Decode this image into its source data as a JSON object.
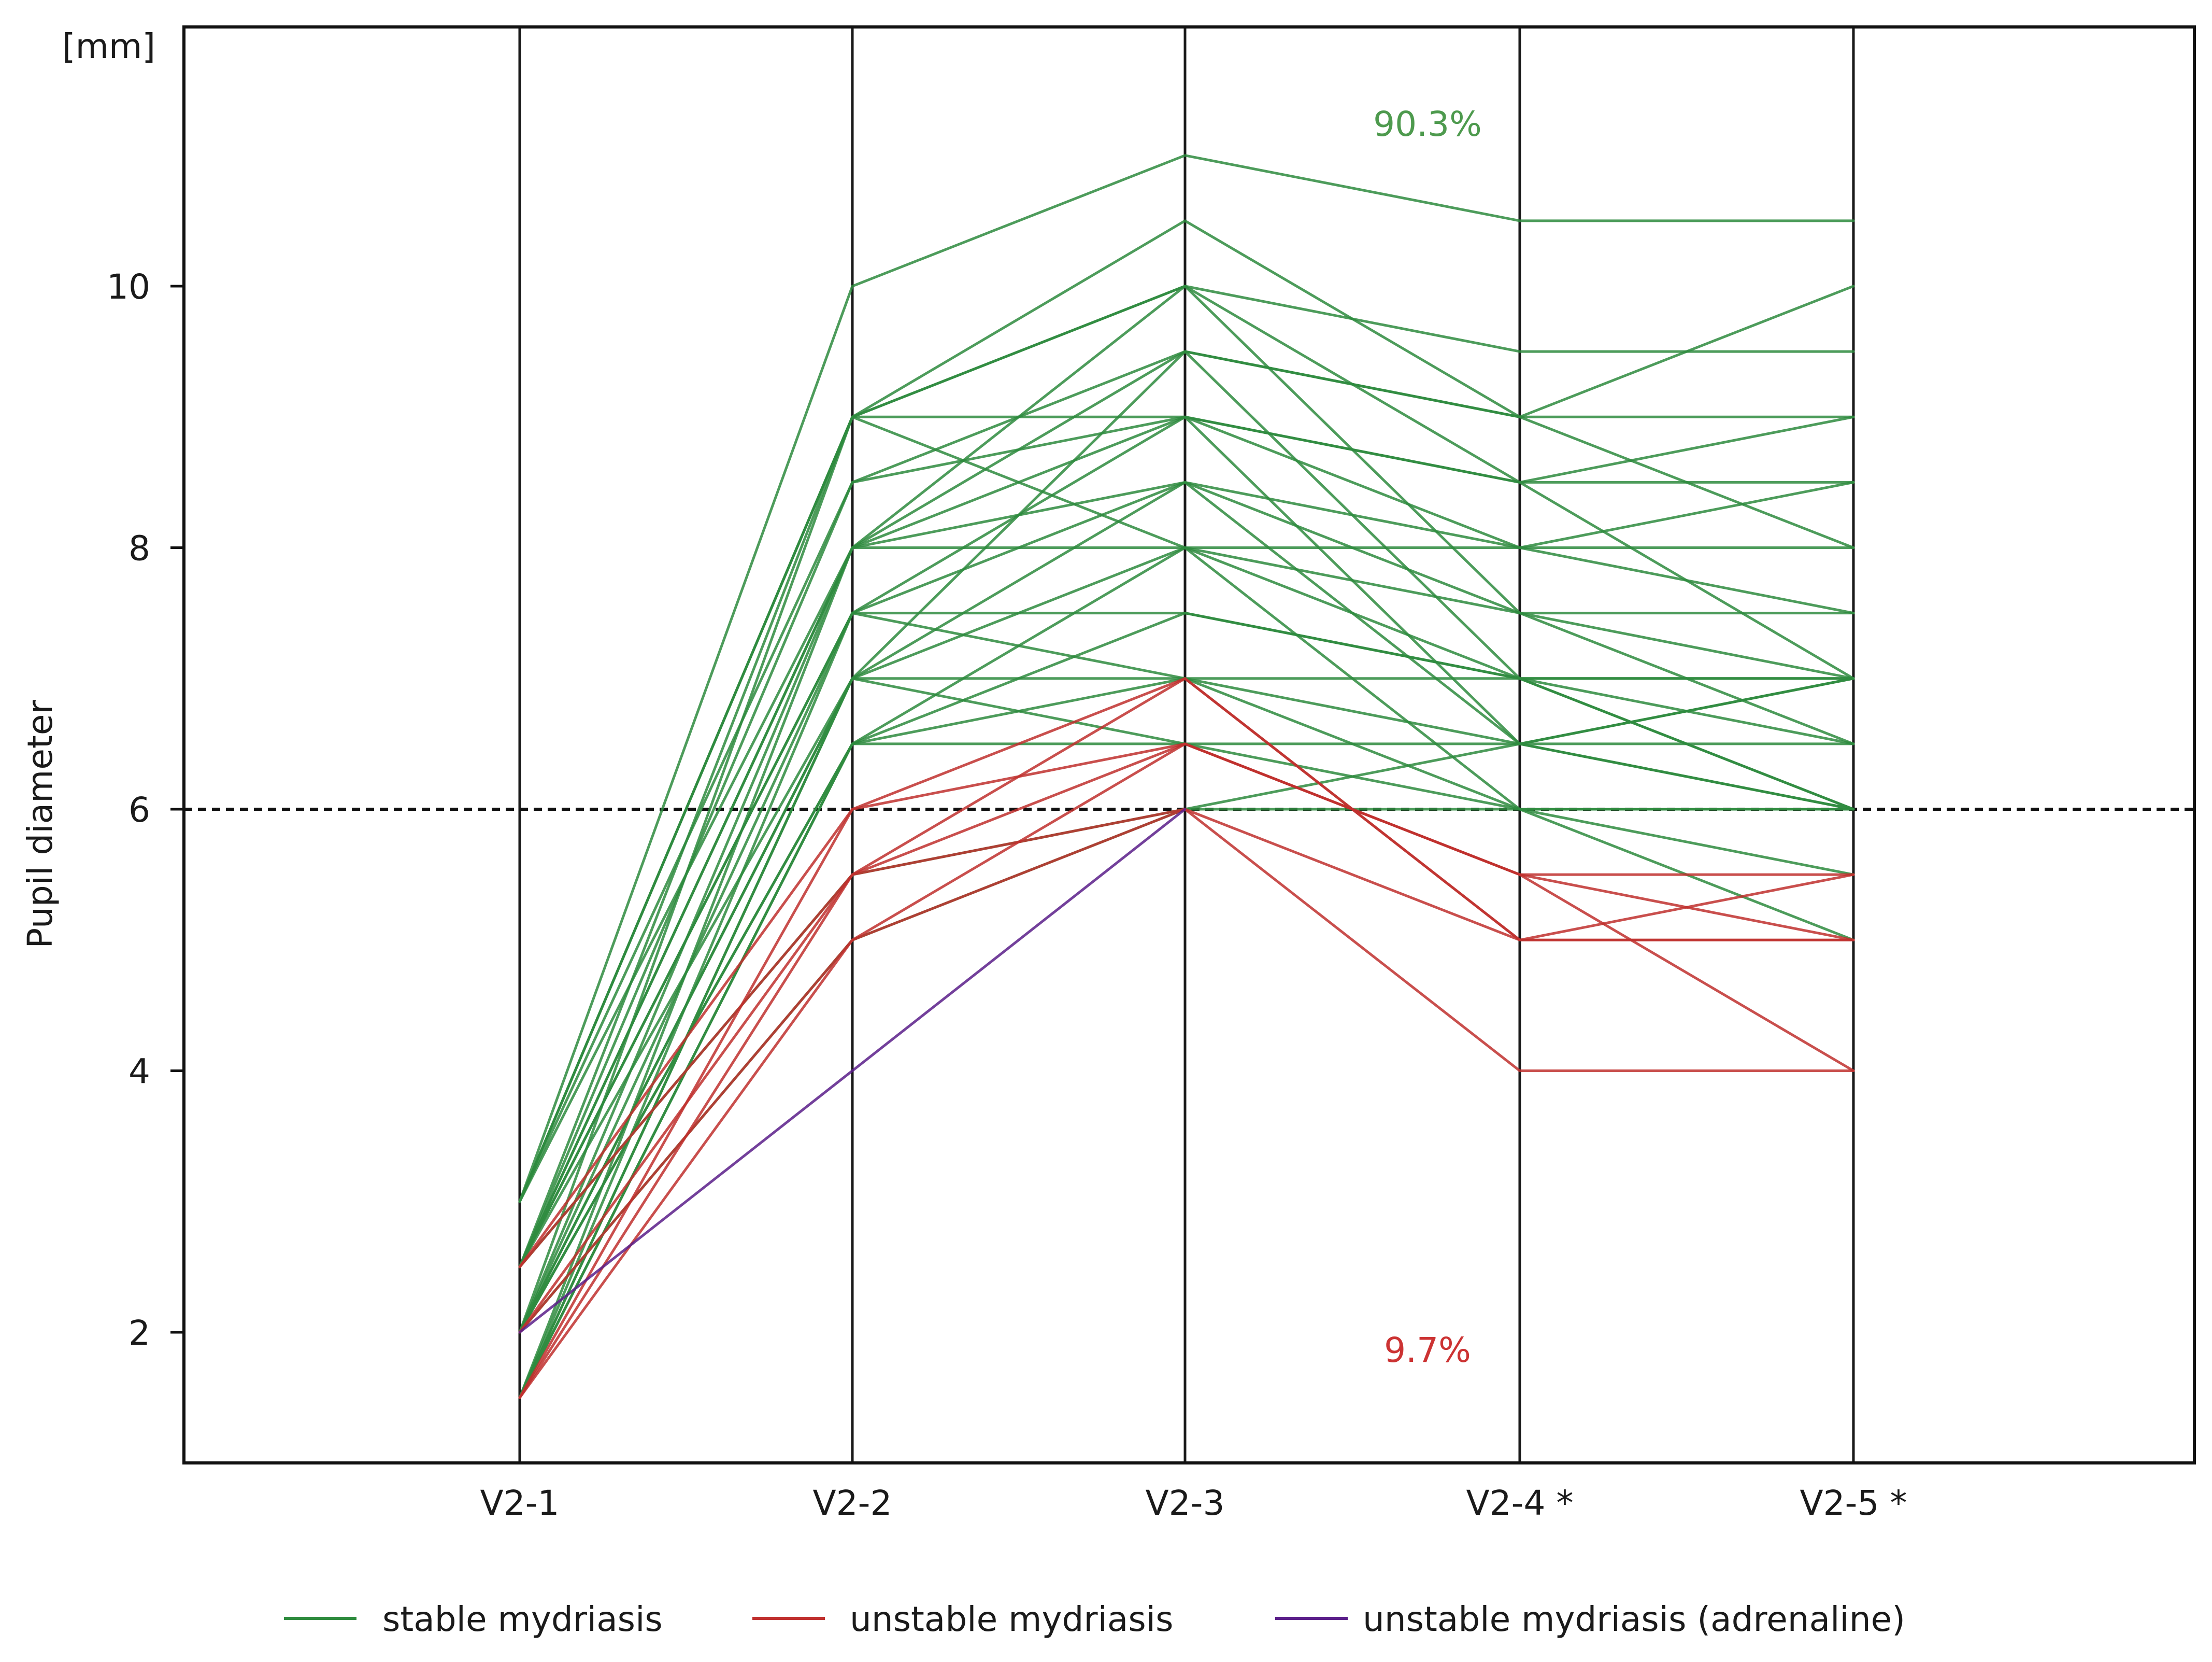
{
  "chart_data": {
    "type": "line",
    "chart_style": "parallel coordinates",
    "ylabel": "Pupil diameter",
    "unit_label": "[mm]",
    "categories": [
      "V2-1",
      "V2-2",
      "V2-3",
      "V2-4 *",
      "V2-5 *"
    ],
    "ylim": [
      1,
      12
    ],
    "yticks": [
      2,
      4,
      6,
      8,
      10
    ],
    "threshold": 6,
    "grid": false,
    "legend_position": "bottom",
    "annotations": [
      {
        "text": "90.3%",
        "color": "#4e9a4e"
      },
      {
        "text": "9.7%",
        "color": "#cc3333"
      }
    ],
    "series": [
      {
        "name": "stable mydriasis",
        "color": "#2e8b3e",
        "lines": [
          [
            3,
            10,
            11,
            10.5,
            10.5
          ],
          [
            3,
            9,
            10.5,
            9,
            10
          ],
          [
            3,
            9,
            10,
            9.5,
            9.5
          ],
          [
            3,
            8.5,
            9.5,
            9,
            9
          ],
          [
            3,
            9,
            10,
            8.5,
            8.5
          ],
          [
            3,
            8,
            9.5,
            9,
            8
          ],
          [
            2.5,
            9,
            9,
            8.5,
            9
          ],
          [
            2.5,
            8.5,
            9,
            8,
            8
          ],
          [
            2.5,
            8,
            10,
            7.5,
            7.5
          ],
          [
            2.5,
            7.5,
            9,
            8.5,
            7
          ],
          [
            2.5,
            8,
            8.5,
            8,
            8.5
          ],
          [
            2.5,
            7,
            9.5,
            7,
            7
          ],
          [
            2.5,
            7.5,
            8.5,
            7.5,
            6.5
          ],
          [
            2,
            9,
            8,
            8,
            7.5
          ],
          [
            2,
            8,
            8,
            7,
            7
          ],
          [
            2,
            7,
            8.5,
            6.5,
            6
          ],
          [
            2,
            7.5,
            7.5,
            7,
            6.5
          ],
          [
            2,
            6.5,
            8,
            7.5,
            7
          ],
          [
            2,
            7,
            7,
            6.5,
            6.5
          ],
          [
            2,
            6.5,
            7.5,
            7,
            6
          ],
          [
            1.5,
            8,
            9,
            6.5,
            7
          ],
          [
            1.5,
            7,
            8,
            6,
            6
          ],
          [
            1.5,
            6.5,
            7,
            6,
            5
          ],
          [
            1.5,
            7.5,
            7,
            7,
            6
          ],
          [
            1.5,
            6.5,
            6.5,
            6.5,
            7
          ],
          [
            1.5,
            7,
            6.5,
            6,
            5.5
          ],
          [
            2.5,
            5.5,
            6,
            6.5,
            6
          ],
          [
            2,
            5,
            6,
            6,
            6
          ]
        ]
      },
      {
        "name": "unstable mydriasis",
        "color": "#c0302e",
        "lines": [
          [
            2.5,
            6,
            6.5,
            5.5,
            5
          ],
          [
            2.5,
            5.5,
            7,
            5,
            5.5
          ],
          [
            2,
            5.5,
            6.5,
            5.5,
            5.5
          ],
          [
            2,
            5,
            6,
            4,
            4
          ],
          [
            1.5,
            6,
            7,
            5,
            5
          ],
          [
            1.5,
            5,
            6.5,
            5.5,
            4
          ],
          [
            1.5,
            5.5,
            6,
            5,
            5
          ]
        ]
      },
      {
        "name": "unstable mydriasis (adrenaline)",
        "color": "#5b1f8a",
        "lines": [
          [
            2,
            4,
            6,
            null,
            null
          ]
        ]
      }
    ]
  }
}
